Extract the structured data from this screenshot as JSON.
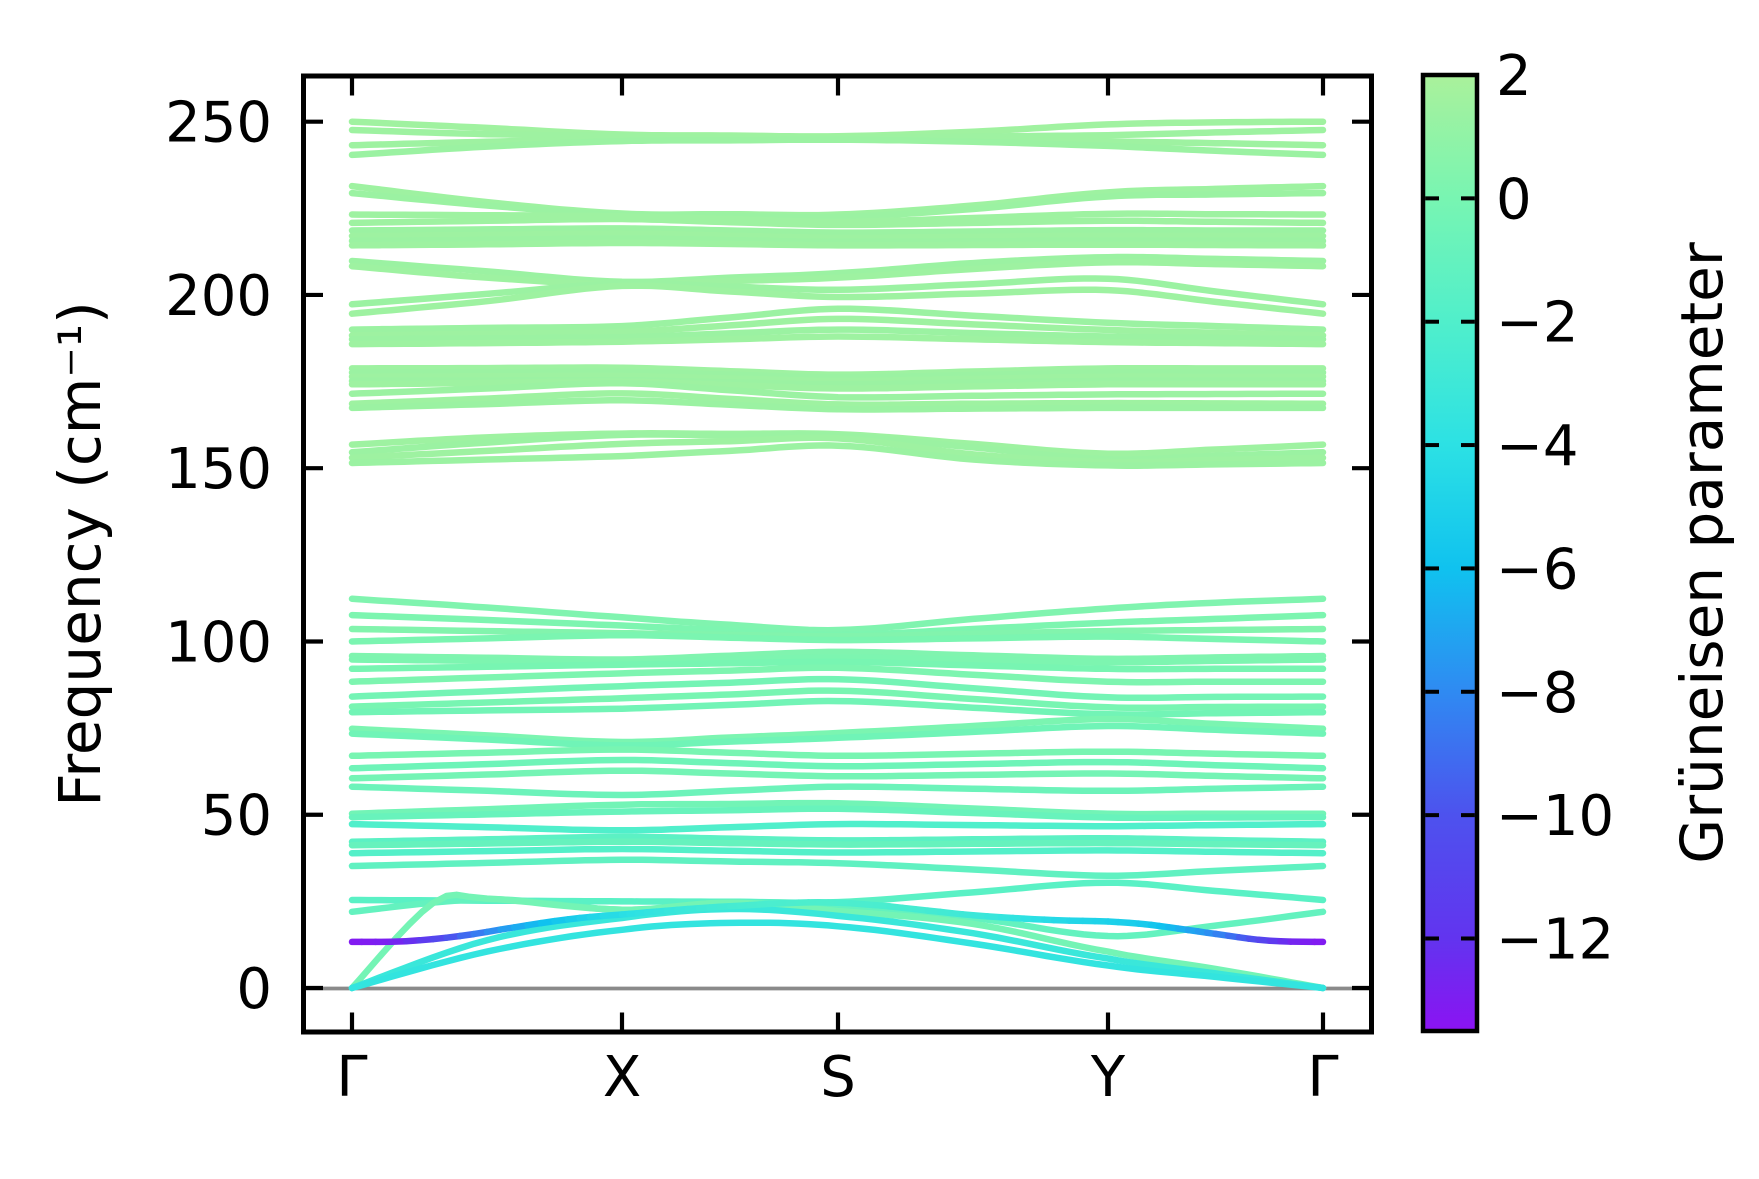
{
  "figure": {
    "background": "#ffffff",
    "kind": "phonon band structure with Grüneisen parameter coloring"
  },
  "axes": {
    "ylabel": "Frequency (cm⁻¹)",
    "ytick_labels": [
      "0",
      "50",
      "100",
      "150",
      "200",
      "250"
    ],
    "ytick_values": [
      0,
      50,
      100,
      150,
      200,
      250
    ],
    "xtick_labels": [
      "Γ",
      "X",
      "S",
      "Y",
      "Γ"
    ],
    "ylim": [
      -12.6,
      263.2
    ],
    "zero_line_color": "#8a8a8a",
    "spine_color": "#000000"
  },
  "colorbar": {
    "label": "Grüneisen parameter",
    "tick_labels": [
      "2",
      "0",
      "−2",
      "−4",
      "−6",
      "−8",
      "−10",
      "−12"
    ],
    "tick_values": [
      2,
      0,
      -2,
      -4,
      -6,
      -8,
      -10,
      -12
    ],
    "vmax": 2,
    "vmin": -13.5,
    "stops": [
      [
        2.0,
        "#aaf19b"
      ],
      [
        0.0,
        "#78f5b2"
      ],
      [
        -2.0,
        "#50efcb"
      ],
      [
        -4.0,
        "#2ce1e4"
      ],
      [
        -6.0,
        "#10c2ef"
      ],
      [
        -8.0,
        "#2f8af2"
      ],
      [
        -10.0,
        "#4d52ee"
      ],
      [
        -12.0,
        "#6234ef"
      ],
      [
        -13.5,
        "#8b13f2"
      ]
    ]
  },
  "chart_data": {
    "type": "line",
    "title": "",
    "xlabel_points": [
      "Γ",
      "X",
      "S",
      "Y",
      "Γ"
    ],
    "ylabel": "Frequency (cm⁻¹)",
    "ylim": [
      -12.6,
      263.2
    ],
    "k_stations": [
      0,
      1,
      2,
      3,
      4
    ],
    "note": "bands: f = frequency (cm⁻¹) at k stations [0,0.5,1,1.5,2,2.5,3,3.5,4] along Γ-X-S-Y-Γ; g = Grüneisen parameter (sets line color)",
    "bands": [
      {
        "g": 1.6,
        "f": [
          250.0,
          248.2,
          246.3,
          246.0,
          245.8,
          247.1,
          249.2,
          249.8,
          250.0
        ]
      },
      {
        "g": 1.5,
        "f": [
          247.6,
          246.4,
          245.9,
          245.6,
          245.4,
          245.7,
          246.1,
          246.9,
          247.6
        ]
      },
      {
        "g": 1.5,
        "f": [
          243.2,
          244.2,
          244.9,
          245.0,
          245.1,
          244.8,
          244.3,
          243.8,
          243.2
        ]
      },
      {
        "g": 1.4,
        "f": [
          240.4,
          242.8,
          244.4,
          244.6,
          244.8,
          244.2,
          243.0,
          241.6,
          240.4
        ]
      },
      {
        "g": 1.5,
        "f": [
          231.4,
          226.8,
          223.5,
          223.3,
          223.2,
          225.8,
          229.6,
          230.6,
          231.4
        ]
      },
      {
        "g": 1.4,
        "f": [
          229.4,
          225.8,
          223.1,
          222.8,
          222.5,
          224.8,
          228.4,
          229.0,
          229.4
        ]
      },
      {
        "g": 1.5,
        "f": [
          223.2,
          223.0,
          222.7,
          221.9,
          221.1,
          222.2,
          223.4,
          223.3,
          223.2
        ]
      },
      {
        "g": 1.5,
        "f": [
          220.8,
          221.4,
          221.9,
          221.0,
          220.2,
          220.8,
          221.4,
          221.1,
          220.8
        ]
      },
      {
        "g": 1.4,
        "f": [
          218.6,
          218.9,
          219.2,
          218.6,
          218.0,
          218.3,
          218.7,
          218.6,
          218.6
        ]
      },
      {
        "g": 1.5,
        "f": [
          217.0,
          217.3,
          217.7,
          217.1,
          216.5,
          216.8,
          217.1,
          217.0,
          217.0
        ]
      },
      {
        "g": 1.4,
        "f": [
          215.6,
          215.9,
          216.3,
          215.8,
          215.3,
          215.5,
          215.7,
          215.6,
          215.6
        ]
      },
      {
        "g": 1.5,
        "f": [
          214.3,
          214.6,
          215.0,
          214.7,
          214.3,
          214.4,
          214.5,
          214.4,
          214.3
        ]
      },
      {
        "g": 1.4,
        "f": [
          209.8,
          206.8,
          203.8,
          205.0,
          206.3,
          209.2,
          210.9,
          210.4,
          209.8
        ]
      },
      {
        "g": 1.5,
        "f": [
          208.3,
          205.0,
          203.0,
          204.0,
          205.0,
          207.5,
          209.4,
          208.9,
          208.3
        ]
      },
      {
        "g": 1.4,
        "f": [
          197.3,
          200.3,
          203.3,
          202.4,
          201.5,
          203.1,
          204.7,
          201.0,
          197.3
        ]
      },
      {
        "g": 1.5,
        "f": [
          194.6,
          198.2,
          202.6,
          201.0,
          199.4,
          200.4,
          201.4,
          198.0,
          194.6
        ]
      },
      {
        "g": 1.4,
        "f": [
          190.0,
          190.5,
          191.0,
          193.5,
          196.0,
          194.0,
          192.0,
          191.0,
          190.0
        ]
      },
      {
        "g": 1.5,
        "f": [
          188.3,
          188.8,
          189.3,
          191.2,
          193.1,
          191.5,
          189.9,
          189.1,
          188.3
        ]
      },
      {
        "g": 1.4,
        "f": [
          187.2,
          187.5,
          187.8,
          188.9,
          190.0,
          189.0,
          188.0,
          187.6,
          187.2
        ]
      },
      {
        "g": 1.5,
        "f": [
          185.8,
          186.1,
          186.5,
          187.2,
          188.0,
          187.2,
          186.4,
          186.1,
          185.8
        ]
      },
      {
        "g": 1.5,
        "f": [
          178.8,
          178.9,
          179.0,
          178.0,
          177.0,
          177.9,
          178.8,
          178.8,
          178.8
        ]
      },
      {
        "g": 1.4,
        "f": [
          177.6,
          177.7,
          177.8,
          177.0,
          176.2,
          176.9,
          177.6,
          177.6,
          177.6
        ]
      },
      {
        "g": 1.5,
        "f": [
          176.4,
          176.5,
          176.6,
          175.9,
          175.2,
          175.8,
          176.4,
          176.4,
          176.4
        ]
      },
      {
        "g": 1.4,
        "f": [
          175.2,
          175.3,
          175.4,
          174.8,
          174.2,
          174.7,
          175.2,
          175.2,
          175.2
        ]
      },
      {
        "g": 1.5,
        "f": [
          174.2,
          174.6,
          175.0,
          174.0,
          173.0,
          173.6,
          174.2,
          174.2,
          174.2
        ]
      },
      {
        "g": 1.4,
        "f": [
          171.5,
          173.0,
          174.5,
          172.5,
          170.5,
          170.9,
          171.3,
          171.4,
          171.5
        ]
      },
      {
        "g": 1.5,
        "f": [
          168.6,
          170.1,
          171.6,
          170.0,
          168.4,
          168.6,
          168.8,
          168.7,
          168.6
        ]
      },
      {
        "g": 1.4,
        "f": [
          167.4,
          168.5,
          169.6,
          168.3,
          167.0,
          167.2,
          167.4,
          167.4,
          167.4
        ]
      },
      {
        "g": 1.5,
        "f": [
          156.8,
          158.9,
          160.0,
          159.9,
          159.8,
          157.0,
          154.2,
          155.4,
          156.8
        ]
      },
      {
        "g": 1.4,
        "f": [
          154.6,
          157.4,
          159.6,
          159.5,
          159.4,
          156.0,
          152.6,
          153.6,
          154.6
        ]
      },
      {
        "g": 1.5,
        "f": [
          153.0,
          155.0,
          157.0,
          157.8,
          158.6,
          154.0,
          151.8,
          152.4,
          153.0
        ]
      },
      {
        "g": 1.4,
        "f": [
          151.5,
          152.5,
          153.5,
          155.0,
          156.5,
          152.5,
          150.8,
          151.1,
          151.5
        ]
      },
      {
        "g": 0.3,
        "f": [
          112.3,
          109.8,
          107.0,
          104.8,
          103.3,
          106.5,
          109.5,
          111.2,
          112.3
        ]
      },
      {
        "g": 0.2,
        "f": [
          107.6,
          106.2,
          104.6,
          103.2,
          101.9,
          103.6,
          105.4,
          106.5,
          107.6
        ]
      },
      {
        "g": 0.4,
        "f": [
          103.6,
          103.0,
          102.4,
          101.9,
          101.5,
          102.2,
          103.0,
          103.3,
          103.6
        ]
      },
      {
        "g": 0.1,
        "f": [
          100.0,
          100.9,
          101.8,
          101.1,
          100.4,
          100.9,
          101.4,
          100.7,
          100.0
        ]
      },
      {
        "g": 0.3,
        "f": [
          95.8,
          95.3,
          94.8,
          95.9,
          97.0,
          96.0,
          95.0,
          95.4,
          95.8
        ]
      },
      {
        "g": 0.2,
        "f": [
          94.8,
          94.4,
          94.0,
          94.7,
          95.4,
          94.7,
          94.0,
          94.4,
          94.8
        ]
      },
      {
        "g": 0.0,
        "f": [
          92.1,
          92.7,
          93.3,
          93.7,
          94.1,
          93.1,
          92.1,
          92.1,
          92.1
        ]
      },
      {
        "g": 0.2,
        "f": [
          88.4,
          89.6,
          90.8,
          91.6,
          92.4,
          90.4,
          88.4,
          88.4,
          88.4
        ]
      },
      {
        "g": -0.2,
        "f": [
          84.1,
          85.6,
          87.1,
          88.1,
          89.1,
          86.5,
          83.9,
          84.0,
          84.1
        ]
      },
      {
        "g": 0.0,
        "f": [
          81.2,
          82.4,
          83.6,
          84.7,
          85.8,
          83.4,
          81.0,
          81.1,
          81.2
        ]
      },
      {
        "g": -0.3,
        "f": [
          79.6,
          80.1,
          80.6,
          81.7,
          82.8,
          80.9,
          79.0,
          79.3,
          79.6
        ]
      },
      {
        "g": 0.1,
        "f": [
          74.8,
          72.9,
          71.0,
          72.3,
          73.6,
          75.6,
          77.6,
          76.2,
          74.8
        ]
      },
      {
        "g": -0.4,
        "f": [
          73.4,
          71.7,
          70.0,
          71.1,
          72.2,
          73.9,
          75.6,
          74.5,
          73.4
        ]
      },
      {
        "g": 0.0,
        "f": [
          67.0,
          67.9,
          68.8,
          67.9,
          67.0,
          67.6,
          68.2,
          67.6,
          67.0
        ]
      },
      {
        "g": -0.5,
        "f": [
          63.4,
          64.6,
          65.8,
          64.9,
          64.0,
          64.6,
          65.2,
          64.3,
          63.4
        ]
      },
      {
        "g": -0.2,
        "f": [
          60.5,
          61.6,
          62.7,
          61.9,
          61.1,
          61.5,
          61.9,
          61.2,
          60.5
        ]
      },
      {
        "g": -0.6,
        "f": [
          58.1,
          56.9,
          55.7,
          56.9,
          58.1,
          57.5,
          56.9,
          57.5,
          58.1
        ]
      },
      {
        "g": -0.3,
        "f": [
          50.3,
          51.6,
          52.9,
          53.1,
          53.3,
          51.8,
          50.3,
          50.3,
          50.3
        ]
      },
      {
        "g": -0.8,
        "f": [
          49.3,
          50.1,
          50.9,
          51.3,
          51.7,
          50.5,
          49.2,
          49.2,
          49.3
        ]
      },
      {
        "g": -2.0,
        "f": [
          47.3,
          46.4,
          45.5,
          46.4,
          47.3,
          47.0,
          46.7,
          47.0,
          47.3
        ]
      },
      {
        "g": -1.4,
        "f": [
          42.2,
          42.9,
          43.6,
          43.1,
          42.6,
          42.9,
          43.2,
          42.7,
          42.2
        ]
      },
      {
        "g": -0.9,
        "f": [
          41.2,
          41.7,
          42.2,
          41.8,
          41.4,
          41.6,
          41.8,
          41.5,
          41.2
        ]
      },
      {
        "g": -1.8,
        "f": [
          38.9,
          39.5,
          40.1,
          39.6,
          39.1,
          39.4,
          39.7,
          39.3,
          38.9
        ]
      },
      {
        "g": -1.2,
        "f": [
          35.2,
          36.1,
          37.0,
          36.5,
          36.0,
          34.2,
          32.4,
          33.8,
          35.2
        ]
      },
      {
        "g": -1.5,
        "f": [
          25.4,
          25.2,
          25.0,
          24.9,
          24.8,
          27.6,
          30.4,
          28.0,
          25.4
        ]
      },
      {
        "g": -1.0,
        "f": [
          22.0,
          25.6,
          22.6,
          24.2,
          23.0,
          20.2,
          15.0,
          18.0,
          22.0
        ]
      },
      {
        "g": -0.2,
        "nodes": [
          [
            0,
            0
          ],
          [
            0.3,
            24.5
          ],
          [
            0.5,
            25.8
          ],
          [
            1,
            22.6
          ],
          [
            1.5,
            24.6
          ],
          [
            2,
            22.2
          ],
          [
            2.5,
            18.5
          ],
          [
            3,
            10.5
          ],
          [
            3.5,
            5.5
          ],
          [
            4,
            0
          ]
        ]
      },
      {
        "g": -3.2,
        "nodes": [
          [
            0,
            0
          ],
          [
            0.5,
            13.8
          ],
          [
            1,
            20.2
          ],
          [
            1.5,
            22.8
          ],
          [
            2,
            20.8
          ],
          [
            2.5,
            15.8
          ],
          [
            3,
            8.5
          ],
          [
            3.5,
            4.2
          ],
          [
            4,
            0
          ]
        ]
      },
      {
        "g": -3.6,
        "nodes": [
          [
            0,
            0
          ],
          [
            0.5,
            10.5
          ],
          [
            1,
            16.8
          ],
          [
            1.5,
            18.8
          ],
          [
            2,
            17.8
          ],
          [
            2.5,
            12.8
          ],
          [
            3,
            6.5
          ],
          [
            3.5,
            3.2
          ],
          [
            4,
            0
          ]
        ]
      },
      {
        "nodes_g": [
          [
            0,
            13.3,
            -13.2
          ],
          [
            0.2,
            13.5,
            -12.5
          ],
          [
            0.4,
            15.0,
            -9.5
          ],
          [
            0.6,
            17.5,
            -7.0
          ],
          [
            0.8,
            19.8,
            -5.5
          ],
          [
            1,
            21.2,
            -4.2
          ],
          [
            1.5,
            23.6,
            -2.6
          ],
          [
            2,
            24.6,
            -2.2
          ],
          [
            2.5,
            21.0,
            -3.0
          ],
          [
            2.8,
            19.6,
            -4.4
          ],
          [
            3,
            19.2,
            -5.0
          ],
          [
            3.2,
            18.2,
            -5.6
          ],
          [
            3.5,
            15.6,
            -8.0
          ],
          [
            3.7,
            13.9,
            -10.5
          ],
          [
            3.85,
            13.4,
            -12.5
          ],
          [
            4,
            13.3,
            -13.2
          ]
        ]
      }
    ]
  }
}
